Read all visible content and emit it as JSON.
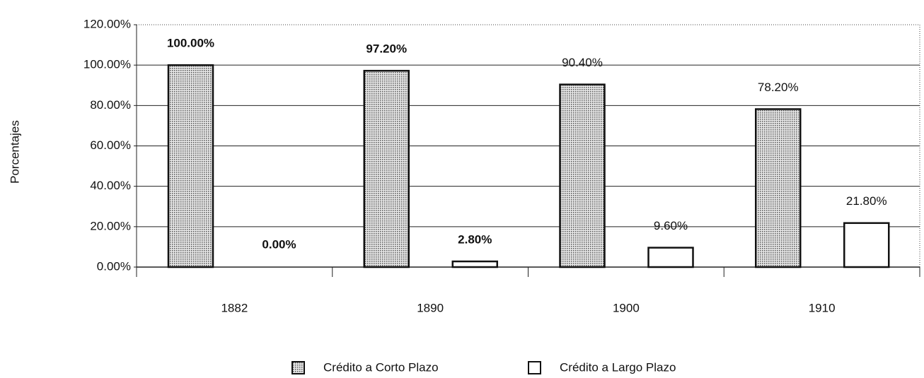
{
  "chart_data": {
    "type": "bar",
    "y_label": "Porcentajes",
    "categories": [
      "1882",
      "1890",
      "1900",
      "1910"
    ],
    "series": [
      {
        "name": "Crédito a Corto Plazo",
        "color": "#b8b8b8",
        "values": [
          100,
          97.2,
          90.4,
          78.2
        ],
        "value_labels": [
          "100.00%",
          "97.20%",
          "90.40%",
          "78.20%"
        ]
      },
      {
        "name": "Crédito a Largo Plazo",
        "color": "#ffffff",
        "values": [
          0,
          2.8,
          9.6,
          21.8
        ],
        "value_labels": [
          "0.00%",
          "2.80%",
          "9.60%",
          "21.80%"
        ]
      }
    ],
    "ylim": [
      0,
      120
    ],
    "yticks": [
      {
        "value": 0,
        "label": "0.00%"
      },
      {
        "value": 20,
        "label": "20.00%"
      },
      {
        "value": 40,
        "label": "40.00%"
      },
      {
        "value": 60,
        "label": "60.00%"
      },
      {
        "value": 80,
        "label": "80.00%"
      },
      {
        "value": 100,
        "label": "100.00%"
      },
      {
        "value": 120,
        "label": "120.00%"
      }
    ],
    "grid": true,
    "legend": "bottom"
  }
}
